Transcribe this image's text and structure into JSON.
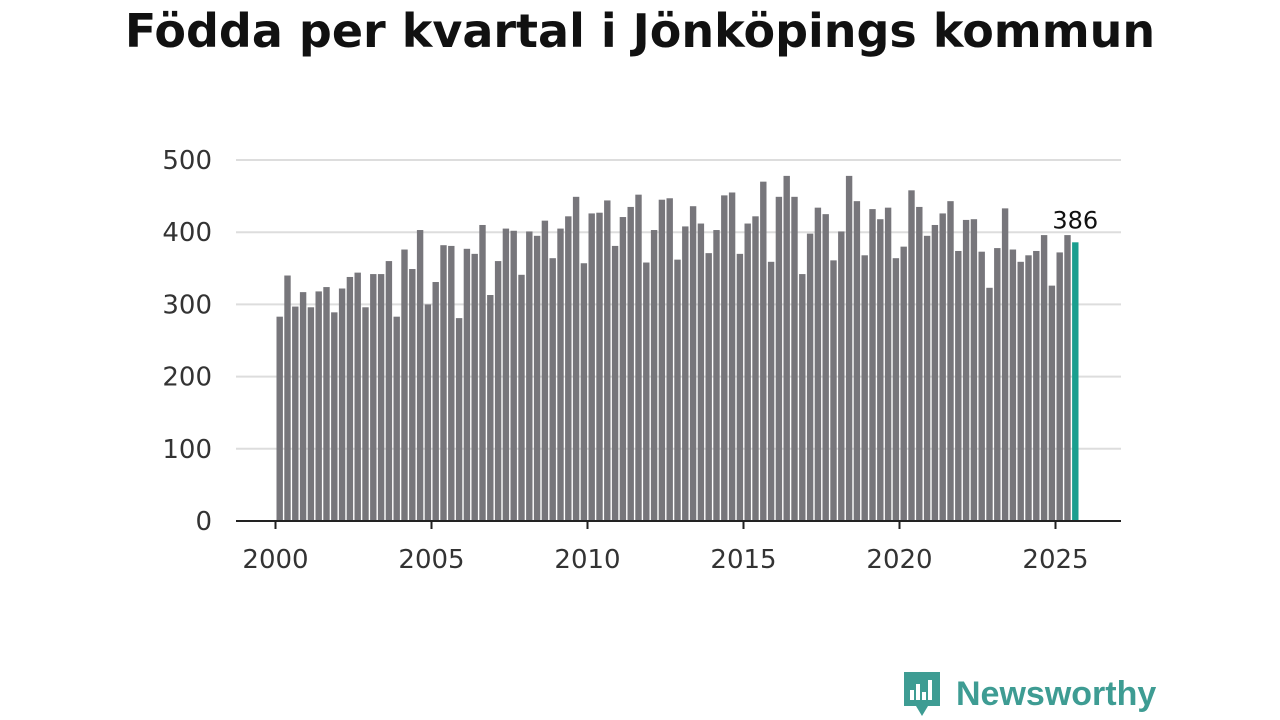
{
  "chart_data": {
    "type": "bar",
    "title": "Födda per kvartal i Jönköpings kommun",
    "xlabel": "",
    "ylabel": "",
    "ylim": [
      0,
      500
    ],
    "yticks": [
      0,
      100,
      200,
      300,
      400,
      500
    ],
    "xticks": [
      "2000",
      "2005",
      "2010",
      "2015",
      "2020",
      "2025"
    ],
    "x_start": 2000,
    "periods_per_year": 4,
    "grid": true,
    "bar_color": "#77767b",
    "highlight_color": "#1a9e8f",
    "highlight_index": 102,
    "highlight_label": "386",
    "values": [
      283,
      340,
      297,
      317,
      296,
      318,
      324,
      289,
      322,
      338,
      344,
      296,
      342,
      342,
      360,
      283,
      376,
      349,
      403,
      300,
      331,
      382,
      381,
      281,
      377,
      370,
      410,
      313,
      360,
      405,
      402,
      341,
      401,
      395,
      416,
      364,
      405,
      422,
      449,
      357,
      426,
      427,
      444,
      381,
      421,
      435,
      452,
      358,
      403,
      445,
      447,
      362,
      408,
      436,
      412,
      371,
      403,
      451,
      455,
      370,
      412,
      422,
      470,
      359,
      449,
      478,
      449,
      342,
      398,
      434,
      425,
      361,
      401,
      478,
      443,
      368,
      432,
      418,
      434,
      364,
      380,
      458,
      435,
      395,
      410,
      426,
      443,
      374,
      417,
      418,
      373,
      323,
      378,
      433,
      376,
      359,
      368,
      374,
      396,
      326,
      372,
      396,
      386
    ]
  },
  "brand": {
    "name": "Newsworthy",
    "color": "#3e9c93"
  }
}
